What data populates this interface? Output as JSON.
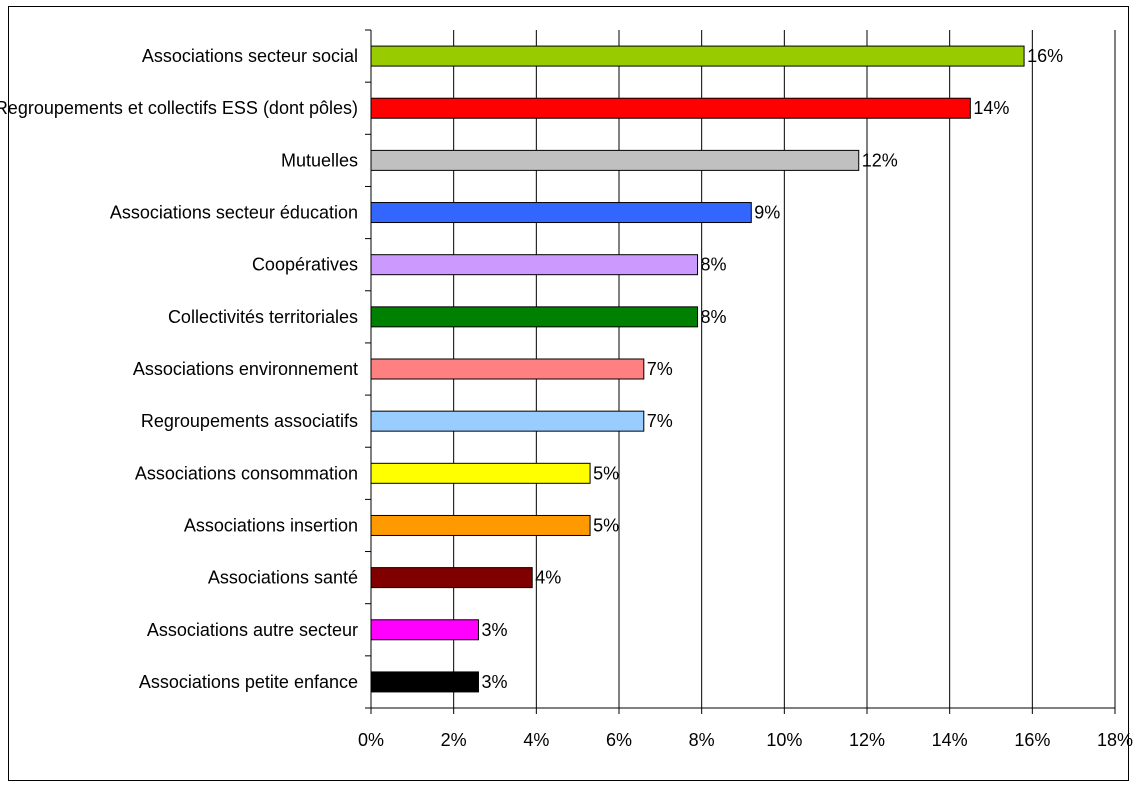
{
  "chart_data": {
    "type": "bar",
    "orientation": "horizontal",
    "categories": [
      "Associations secteur social",
      "Regroupements et collectifs ESS (dont pôles)",
      "Mutuelles",
      "Associations secteur éducation",
      "Coopératives",
      "Collectivités territoriales",
      "Associations environnement",
      "Regroupements associatifs",
      "Associations consommation",
      "Associations insertion",
      "Associations santé",
      "Associations autre secteur",
      "Associations petite enfance"
    ],
    "values": [
      15.8,
      14.5,
      11.8,
      9.2,
      7.9,
      7.9,
      6.6,
      6.6,
      5.3,
      5.3,
      3.9,
      2.6,
      2.6
    ],
    "data_labels": [
      "16%",
      "14%",
      "12%",
      "9%",
      "8%",
      "8%",
      "7%",
      "7%",
      "5%",
      "5%",
      "4%",
      "3%",
      "3%"
    ],
    "colors": [
      "#99CC00",
      "#FF0000",
      "#C0C0C0",
      "#3366FF",
      "#CC99FF",
      "#008000",
      "#FF8080",
      "#99CCFF",
      "#FFFF00",
      "#FF9900",
      "#800000",
      "#FF00FF",
      "#000000"
    ],
    "xlim": [
      0,
      18
    ],
    "x_ticks": [
      0,
      2,
      4,
      6,
      8,
      10,
      12,
      14,
      16,
      18
    ],
    "x_tick_labels": [
      "0%",
      "2%",
      "4%",
      "6%",
      "8%",
      "10%",
      "12%",
      "14%",
      "16%",
      "18%"
    ],
    "grid": "vertical major gridlines",
    "legend": "none",
    "title": "",
    "xlabel": "",
    "ylabel": ""
  }
}
